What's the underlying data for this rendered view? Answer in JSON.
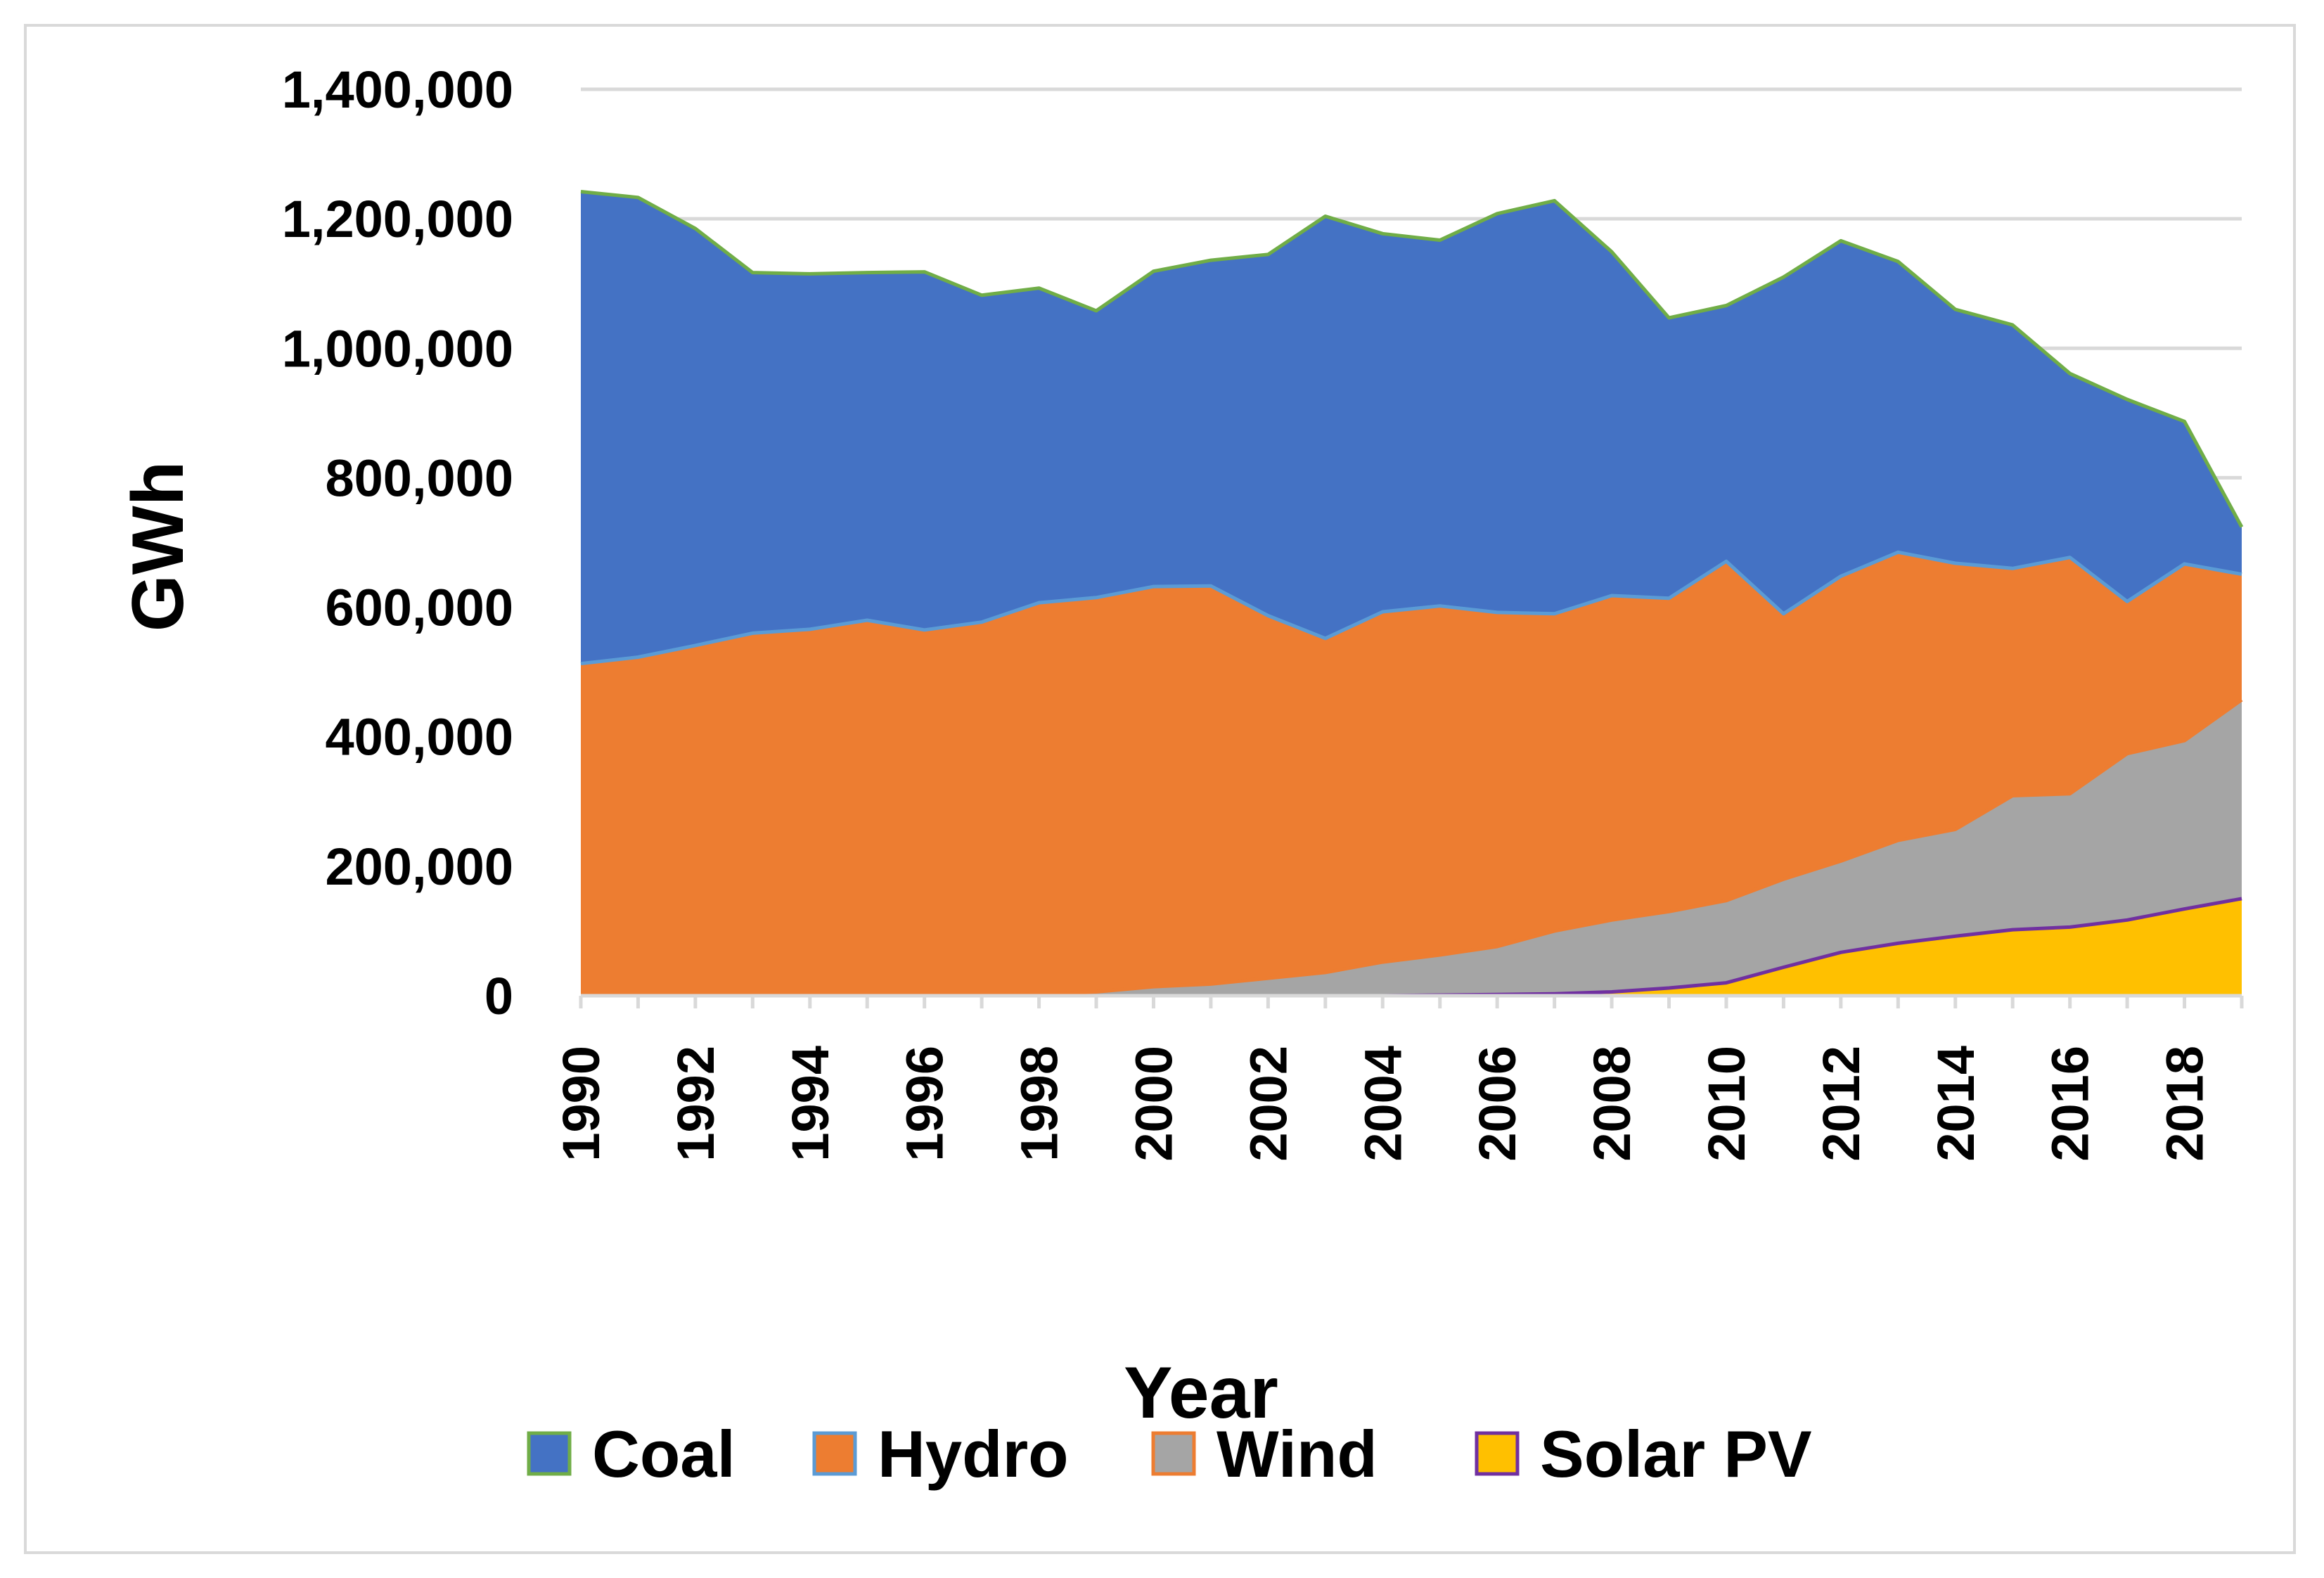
{
  "chart_data": {
    "type": "area",
    "stacked": true,
    "title": "",
    "xlabel": "Year",
    "ylabel": "GWh",
    "ylim": [
      0,
      1400000
    ],
    "y_ticks": [
      0,
      200000,
      400000,
      600000,
      800000,
      1000000,
      1200000,
      1400000
    ],
    "y_tick_labels": [
      "0",
      "200,000",
      "400,000",
      "600,000",
      "800,000",
      "1,000,000",
      "1,200,000",
      "1,400,000"
    ],
    "x": [
      1990,
      1991,
      1992,
      1993,
      1994,
      1995,
      1996,
      1997,
      1998,
      1999,
      2000,
      2001,
      2002,
      2003,
      2004,
      2005,
      2006,
      2007,
      2008,
      2009,
      2010,
      2011,
      2012,
      2013,
      2014,
      2015,
      2016,
      2017,
      2018,
      2019
    ],
    "x_tick_labels": [
      "1990",
      "1992",
      "1994",
      "1996",
      "1998",
      "2000",
      "2002",
      "2004",
      "2006",
      "2008",
      "2010",
      "2012",
      "2014",
      "2016",
      "2018"
    ],
    "grid": true,
    "legend_position": "bottom",
    "series": [
      {
        "name": "Solar PV",
        "fill": "#ffc000",
        "stroke": "#7030a0",
        "values": [
          0,
          0,
          0,
          0,
          0,
          0,
          0,
          0,
          0,
          0,
          0,
          0,
          0,
          0,
          0,
          1000,
          2000,
          3000,
          6000,
          12000,
          20000,
          44000,
          67000,
          81000,
          92000,
          102000,
          106000,
          117000,
          134000,
          150000
        ]
      },
      {
        "name": "Wind",
        "fill": "#a5a5a5",
        "stroke": "#ed7d31",
        "values": [
          0,
          0,
          0,
          0,
          0,
          0,
          0,
          1000,
          3000,
          6000,
          14000,
          18000,
          27000,
          36000,
          52000,
          62000,
          74000,
          97000,
          111000,
          118000,
          127000,
          136000,
          141000,
          159000,
          165000,
          207000,
          206000,
          257000,
          260000,
          307000
        ]
      },
      {
        "name": "Hydro",
        "fill": "#ed7d31",
        "stroke": "#5b9bd5",
        "values": [
          513000,
          523000,
          541000,
          560000,
          566000,
          580000,
          565000,
          576000,
          604000,
          609000,
          618000,
          615000,
          560000,
          516000,
          541000,
          539000,
          516000,
          490000,
          501000,
          484000,
          524000,
          410000,
          440000,
          445000,
          411000,
          351000,
          365000,
          235000,
          273000,
          194000
        ]
      },
      {
        "name": "Coal",
        "fill": "#4472c4",
        "stroke": "#70ad47",
        "values": [
          729000,
          710000,
          644000,
          557000,
          549000,
          537000,
          553000,
          505000,
          486000,
          443000,
          487000,
          503000,
          558000,
          652000,
          584000,
          565000,
          616000,
          638000,
          531000,
          433000,
          395000,
          520000,
          518000,
          449000,
          392000,
          376000,
          284000,
          312000,
          220000,
          73000
        ]
      }
    ],
    "legend": [
      {
        "label": "Coal",
        "swatch_fill": "#4472c4",
        "swatch_stroke": "#70ad47"
      },
      {
        "label": "Hydro",
        "swatch_fill": "#ed7d31",
        "swatch_stroke": "#5b9bd5"
      },
      {
        "label": "Wind",
        "swatch_fill": "#a5a5a5",
        "swatch_stroke": "#ed7d31"
      },
      {
        "label": "Solar PV",
        "swatch_fill": "#ffc000",
        "swatch_stroke": "#7030a0"
      }
    ],
    "colors": {
      "grid": "#d9d9d9",
      "axis": "#d9d9d9",
      "frame": "#d9d9d9"
    }
  }
}
